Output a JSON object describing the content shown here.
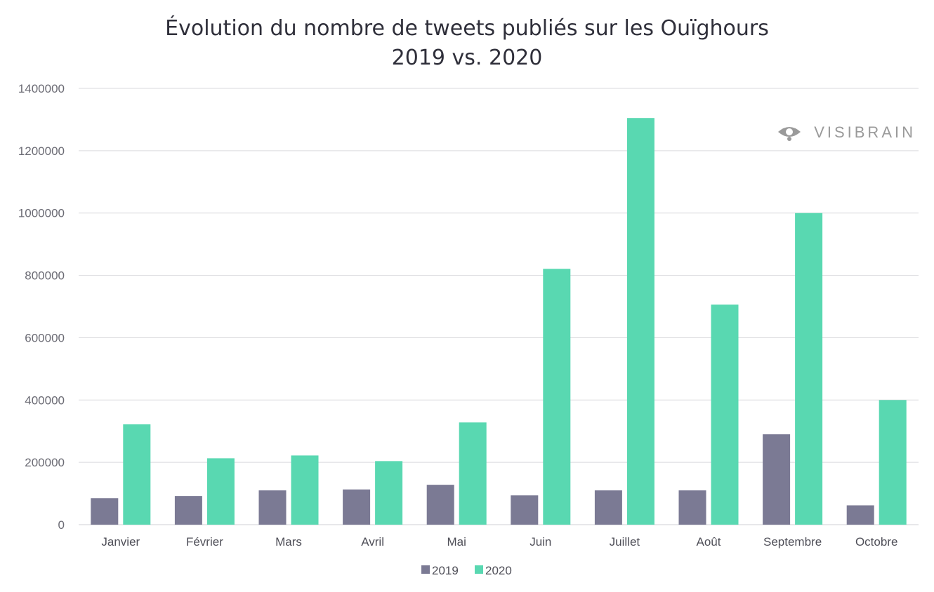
{
  "chart_data": {
    "type": "bar",
    "title": "Évolution du nombre de tweets publiés sur les Ouïghours",
    "subtitle": "2019 vs. 2020",
    "categories": [
      "Janvier",
      "Février",
      "Mars",
      "Avril",
      "Mai",
      "Juin",
      "Juillet",
      "Août",
      "Septembre",
      "Octobre"
    ],
    "series": [
      {
        "name": "2019",
        "color": "#7b7a94",
        "values": [
          85000,
          92000,
          110000,
          113000,
          128000,
          94000,
          110000,
          110000,
          290000,
          62000
        ]
      },
      {
        "name": "2020",
        "color": "#59d8b1",
        "values": [
          322000,
          213000,
          222000,
          204000,
          328000,
          821000,
          1305000,
          706000,
          1000000,
          400000
        ]
      }
    ],
    "ylim": [
      0,
      1400000
    ],
    "yticks": [
      "0",
      "200000",
      "400000",
      "600000",
      "800000",
      "1000000",
      "1200000",
      "1400000"
    ],
    "xlabel": "",
    "ylabel": "",
    "grid": true,
    "legend_position": "bottom"
  },
  "brand": {
    "name": "VISIBRAIN",
    "icon": "eye-icon"
  }
}
